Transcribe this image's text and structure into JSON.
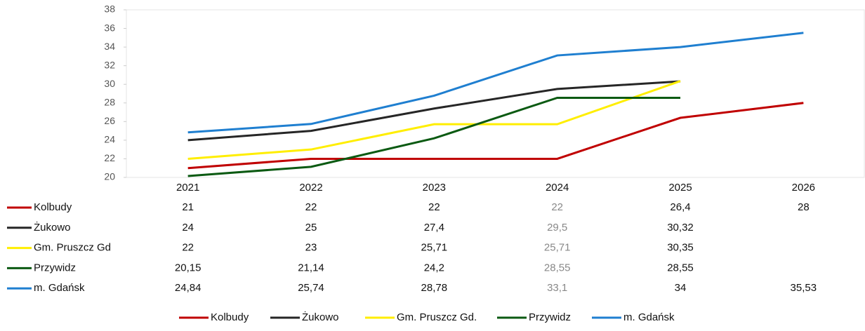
{
  "chart_data": {
    "type": "line",
    "categories": [
      "2021",
      "2022",
      "2023",
      "2024",
      "2025",
      "2026"
    ],
    "ylim": [
      20,
      38
    ],
    "yticks": [
      20,
      22,
      24,
      26,
      28,
      30,
      32,
      34,
      36,
      38
    ],
    "grid": false,
    "series": [
      {
        "name": "Kolbudy",
        "color": "#c00000",
        "values": [
          21,
          22,
          22,
          22,
          26.4,
          28
        ],
        "value_labels": [
          "21",
          "22",
          "22",
          "22",
          "26,4",
          "28"
        ]
      },
      {
        "name": "Żukowo",
        "color": "#262626",
        "values": [
          24,
          25,
          27.4,
          29.5,
          30.32,
          null
        ],
        "value_labels": [
          "24",
          "25",
          "27,4",
          "29,5",
          "30,32",
          null
        ]
      },
      {
        "name": "Gm. Pruszcz Gd",
        "color": "#ffee00",
        "values": [
          22,
          23,
          25.71,
          25.71,
          30.35,
          null
        ],
        "value_labels": [
          "22",
          "23",
          "25,71",
          "25,71",
          "30,35",
          null
        ]
      },
      {
        "name": "Przywidz",
        "color": "#0b5a12",
        "values": [
          20.15,
          21.14,
          24.2,
          28.55,
          28.55,
          null
        ],
        "value_labels": [
          "20,15",
          "21,14",
          "24,2",
          "28,55",
          "28,55",
          null
        ]
      },
      {
        "name": "m. Gdańsk",
        "color": "#1f7fd0",
        "values": [
          24.84,
          25.74,
          28.78,
          33.1,
          34,
          35.53
        ],
        "value_labels": [
          "24,84",
          "25,74",
          "28,78",
          "33,1",
          "34",
          "35,53"
        ]
      }
    ],
    "legend": [
      "Kolbudy",
      "Żukowo",
      "Gm. Pruszcz Gd.",
      "Przywidz",
      "m. Gdańsk"
    ],
    "legend_position": "bottom"
  }
}
